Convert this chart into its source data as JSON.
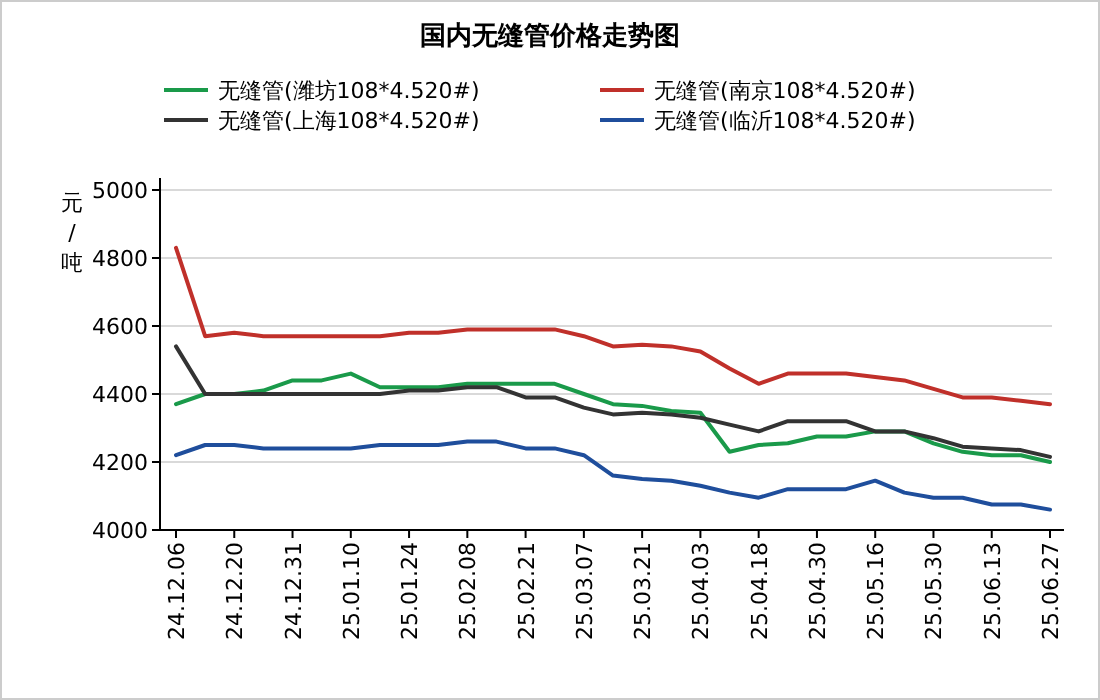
{
  "chart_data": {
    "type": "line",
    "title": "国内无缝管价格走势图",
    "ylabel": "元/吨",
    "categories": [
      "24.12.06",
      null,
      "24.12.20",
      null,
      "24.12.31",
      null,
      "25.01.10",
      null,
      "25.01.24",
      null,
      "25.02.08",
      null,
      "25.02.21",
      null,
      "25.03.07",
      null,
      "25.03.21",
      null,
      "25.04.03",
      null,
      "25.04.18",
      null,
      "25.04.30",
      null,
      "25.05.16",
      null,
      "25.05.30",
      null,
      "25.06.13",
      null,
      "25.06.27"
    ],
    "series": [
      {
        "name": "无缝管(潍坊108*4.520#)",
        "color": "#1a9a4a",
        "values": [
          4370,
          4400,
          4400,
          4410,
          4440,
          4440,
          4460,
          4420,
          4420,
          4420,
          4430,
          4430,
          4430,
          4430,
          4400,
          4370,
          4365,
          4350,
          4345,
          4230,
          4250,
          4255,
          4275,
          4275,
          4290,
          4290,
          4255,
          4230,
          4220,
          4220,
          4200
        ]
      },
      {
        "name": "无缝管(南京108*4.520#)",
        "color": "#c0302a",
        "values": [
          4830,
          4570,
          4580,
          4570,
          4570,
          4570,
          4570,
          4570,
          4580,
          4580,
          4590,
          4590,
          4590,
          4590,
          4570,
          4540,
          4545,
          4540,
          4525,
          4475,
          4430,
          4460,
          4460,
          4460,
          4450,
          4440,
          4415,
          4390,
          4390,
          4380,
          4370
        ]
      },
      {
        "name": "无缝管(上海108*4.520#)",
        "color": "#333333",
        "values": [
          4540,
          4400,
          4400,
          4400,
          4400,
          4400,
          4400,
          4400,
          4410,
          4410,
          4420,
          4420,
          4390,
          4390,
          4360,
          4340,
          4345,
          4340,
          4330,
          4310,
          4290,
          4320,
          4320,
          4320,
          4290,
          4290,
          4270,
          4245,
          4240,
          4235,
          4215
        ]
      },
      {
        "name": "无缝管(临沂108*4.520#)",
        "color": "#1f4e9c",
        "values": [
          4220,
          4250,
          4250,
          4240,
          4240,
          4240,
          4240,
          4250,
          4250,
          4250,
          4260,
          4260,
          4240,
          4240,
          4220,
          4160,
          4150,
          4145,
          4130,
          4110,
          4095,
          4120,
          4120,
          4120,
          4145,
          4110,
          4095,
          4095,
          4075,
          4075,
          4060
        ]
      }
    ],
    "ylim": [
      4000,
      5000
    ],
    "yticks": [
      4000,
      4200,
      4400,
      4600,
      4800,
      5000
    ],
    "grid": "y",
    "legend": "top",
    "marker": "none",
    "line_style": "solid"
  }
}
